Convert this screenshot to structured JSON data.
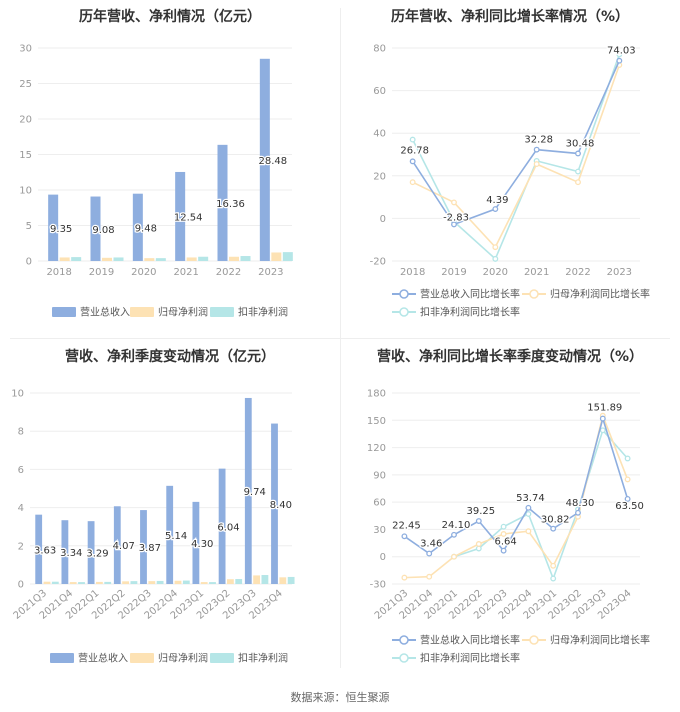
{
  "colors": {
    "revenue": "#8eaedf",
    "net_profit": "#fde2b4",
    "deducted_profit": "#b5e6e7",
    "axis_text": "#999999",
    "grid": "#eeeeee",
    "label": "#333333"
  },
  "source_text": "数据来源：恒生聚源",
  "chart_data": [
    {
      "type": "bar",
      "title": "历年营收、净利情况（亿元）",
      "categories": [
        "2018",
        "2019",
        "2020",
        "2021",
        "2022",
        "2023"
      ],
      "ylim": [
        0,
        30
      ],
      "yticks": [
        0,
        5,
        10,
        15,
        20,
        25,
        30
      ],
      "series": [
        {
          "name": "营业总收入",
          "values": [
            9.35,
            9.08,
            9.48,
            12.54,
            16.36,
            28.48
          ],
          "labels": [
            "9.35",
            "9.08",
            "9.48",
            "12.54",
            "16.36",
            "28.48"
          ]
        },
        {
          "name": "归母净利润",
          "values": [
            0.5,
            0.45,
            0.4,
            0.5,
            0.6,
            1.2
          ]
        },
        {
          "name": "扣非净利润",
          "values": [
            0.55,
            0.5,
            0.4,
            0.6,
            0.7,
            1.25
          ]
        }
      ],
      "legend_position": "bottom"
    },
    {
      "type": "line",
      "title": "历年营收、净利同比增长率情况（%）",
      "categories": [
        "2018",
        "2019",
        "2020",
        "2021",
        "2022",
        "2023"
      ],
      "ylim": [
        -20,
        80
      ],
      "yticks": [
        -20,
        0,
        20,
        40,
        60,
        80
      ],
      "series": [
        {
          "name": "营业总收入同比增长率",
          "values": [
            26.78,
            -2.83,
            4.39,
            32.28,
            30.48,
            74.03
          ],
          "labels": [
            "26.78",
            "-2.83",
            "4.39",
            "32.28",
            "30.48",
            "74.03"
          ]
        },
        {
          "name": "归母净利润同比增长率",
          "values": [
            17,
            7.5,
            -13.5,
            25.5,
            17,
            72
          ]
        },
        {
          "name": "扣非净利润同比增长率",
          "values": [
            37,
            -1.5,
            -19,
            27,
            22,
            77
          ]
        }
      ],
      "legend_position": "bottom"
    },
    {
      "type": "bar",
      "title": "营收、净利季度变动情况（亿元）",
      "categories": [
        "2021Q3",
        "2021Q4",
        "2022Q1",
        "2022Q2",
        "2022Q3",
        "2022Q4",
        "2023Q1",
        "2023Q2",
        "2023Q3",
        "2023Q4"
      ],
      "ylim": [
        0,
        10
      ],
      "yticks": [
        0,
        2,
        4,
        6,
        8,
        10
      ],
      "series": [
        {
          "name": "营业总收入",
          "values": [
            3.63,
            3.34,
            3.29,
            4.07,
            3.87,
            5.14,
            4.3,
            6.04,
            9.74,
            8.4
          ],
          "labels": [
            "3.63",
            "3.34",
            "3.29",
            "4.07",
            "3.87",
            "5.14",
            "4.30",
            "6.04",
            "9.74",
            "8.40"
          ]
        },
        {
          "name": "归母净利润",
          "values": [
            0.12,
            0.1,
            0.11,
            0.14,
            0.15,
            0.17,
            0.1,
            0.25,
            0.45,
            0.35
          ]
        },
        {
          "name": "扣非净利润",
          "values": [
            0.12,
            0.1,
            0.11,
            0.15,
            0.16,
            0.18,
            0.1,
            0.26,
            0.47,
            0.37
          ]
        }
      ],
      "legend_position": "bottom"
    },
    {
      "type": "line",
      "title": "营收、净利同比增长率季度变动情况（%）",
      "categories": [
        "2021Q3",
        "2021Q4",
        "2022Q1",
        "2022Q2",
        "2022Q3",
        "2022Q4",
        "2023Q1",
        "2023Q2",
        "2023Q3",
        "2023Q4"
      ],
      "ylim": [
        -30,
        180
      ],
      "yticks": [
        -30,
        0,
        30,
        60,
        90,
        120,
        150,
        180
      ],
      "series": [
        {
          "name": "营业总收入同比增长率",
          "values": [
            22.45,
            3.46,
            24.1,
            39.25,
            6.64,
            53.74,
            30.82,
            48.3,
            151.89,
            63.5
          ],
          "labels": [
            "22.45",
            "3.46",
            "24.10",
            "39.25",
            "6.64",
            "53.74",
            "30.82",
            "48.30",
            "151.89",
            "63.50"
          ]
        },
        {
          "name": "归母净利润同比增长率",
          "values": [
            -23,
            -22,
            0,
            14,
            25,
            28,
            -10,
            44,
            155,
            85
          ]
        },
        {
          "name": "扣非净利润同比增长率",
          "values": [
            null,
            null,
            0,
            9,
            33,
            47,
            -24,
            52,
            139,
            108
          ]
        }
      ],
      "legend_position": "bottom"
    }
  ]
}
